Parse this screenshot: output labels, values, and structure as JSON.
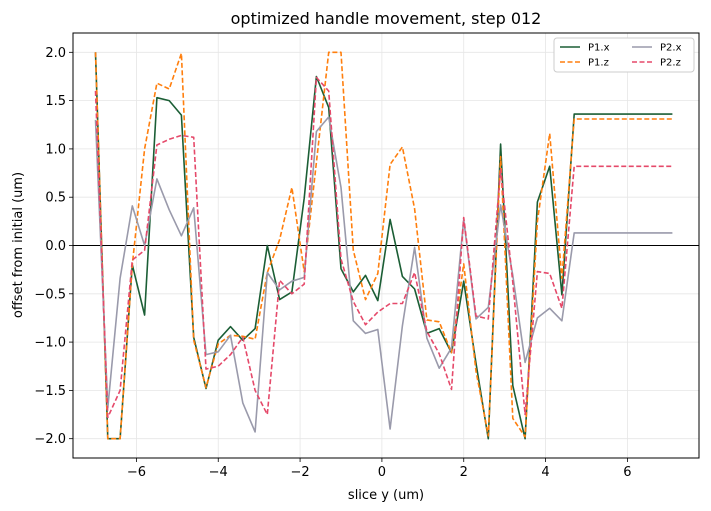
{
  "chart_data": {
    "type": "line",
    "title": "optimized handle movement, step 012",
    "xlabel": "slice y (um)",
    "ylabel": "offset from initial (um)",
    "xlim": [
      -7.55,
      7.75
    ],
    "ylim": [
      -2.2,
      2.2
    ],
    "xticks": [
      -6,
      -4,
      -2,
      0,
      2,
      4,
      6
    ],
    "yticks": [
      -2.0,
      -1.5,
      -1.0,
      -0.5,
      0.0,
      0.5,
      1.0,
      1.5,
      2.0
    ],
    "xtick_labels": [
      "−6",
      "−4",
      "−2",
      "0",
      "2",
      "4",
      "6"
    ],
    "ytick_labels": [
      "−2.0",
      "−1.5",
      "−1.0",
      "−0.5",
      "0.0",
      "0.5",
      "1.0",
      "1.5",
      "2.0"
    ],
    "grid": true,
    "zero_line": true,
    "legend_position": "top-right",
    "legend_columns": 2,
    "x": [
      -7.0,
      -6.7,
      -6.4,
      -6.1,
      -5.8,
      -5.5,
      -5.2,
      -4.9,
      -4.6,
      -4.3,
      -4.0,
      -3.7,
      -3.4,
      -3.1,
      -2.8,
      -2.5,
      -2.2,
      -1.9,
      -1.6,
      -1.3,
      -1.0,
      -0.7,
      -0.4,
      -0.1,
      0.2,
      0.5,
      0.8,
      1.1,
      1.4,
      1.7,
      2.0,
      2.3,
      2.6,
      2.9,
      3.2,
      3.5,
      3.8,
      4.1,
      4.4,
      4.7,
      5.0,
      5.3,
      5.6,
      5.9,
      6.2,
      6.5,
      6.8,
      7.1
    ],
    "series": [
      {
        "name": "P1.x",
        "color": "#1b5e35",
        "dash": "solid",
        "values": [
          2.0,
          -2.0,
          -2.0,
          -0.2,
          -0.72,
          1.53,
          1.5,
          1.35,
          -0.95,
          -1.48,
          -0.98,
          -0.84,
          -0.98,
          -0.86,
          0.0,
          -0.56,
          -0.48,
          0.49,
          1.75,
          1.43,
          -0.24,
          -0.48,
          -0.31,
          -0.57,
          0.27,
          -0.32,
          -0.45,
          -0.91,
          -0.86,
          -1.11,
          -0.37,
          -1.22,
          -2.0,
          1.05,
          -1.45,
          -2.0,
          0.45,
          0.82,
          -0.51,
          1.36,
          1.36,
          1.36,
          1.36,
          1.36,
          1.36,
          1.36,
          1.36,
          1.36
        ]
      },
      {
        "name": "P1.z",
        "color": "#ff7f0e",
        "dash": "dashed",
        "values": [
          2.0,
          -2.0,
          -2.0,
          -0.2,
          1.0,
          1.68,
          1.62,
          1.99,
          -0.98,
          -1.47,
          -1.02,
          -0.93,
          -0.94,
          -0.97,
          -0.28,
          0.06,
          0.6,
          -0.27,
          0.86,
          2.0,
          2.0,
          -0.05,
          -0.56,
          -0.29,
          0.84,
          1.02,
          0.38,
          -0.77,
          -0.79,
          -1.11,
          -0.19,
          -1.3,
          -1.97,
          0.92,
          -1.79,
          -1.98,
          0.25,
          1.16,
          -0.34,
          1.31,
          1.31,
          1.31,
          1.31,
          1.31,
          1.31,
          1.31,
          1.31,
          1.31
        ]
      },
      {
        "name": "P2.x",
        "color": "#9a9aab",
        "dash": "solid",
        "values": [
          1.3,
          -1.68,
          -0.34,
          0.41,
          0.0,
          0.69,
          0.37,
          0.1,
          0.39,
          -1.13,
          -1.1,
          -0.93,
          -1.63,
          -1.93,
          -0.28,
          -0.46,
          -0.37,
          -0.33,
          1.18,
          1.33,
          0.6,
          -0.78,
          -0.91,
          -0.87,
          -1.9,
          -0.83,
          -0.02,
          -0.96,
          -1.27,
          -1.06,
          0.27,
          -0.76,
          -0.64,
          0.42,
          -0.31,
          -1.21,
          -0.75,
          -0.65,
          -0.78,
          0.13,
          0.13,
          0.13,
          0.13,
          0.13,
          0.13,
          0.13,
          0.13,
          0.13
        ]
      },
      {
        "name": "P2.z",
        "color": "#e5496a",
        "dash": "dashed",
        "values": [
          1.6,
          -1.78,
          -1.5,
          -0.15,
          -0.05,
          1.04,
          1.1,
          1.14,
          1.12,
          -1.28,
          -1.25,
          -1.13,
          -0.95,
          -1.5,
          -1.75,
          -0.36,
          -0.5,
          -0.4,
          1.74,
          1.6,
          -0.14,
          -0.58,
          -0.82,
          -0.69,
          -0.6,
          -0.6,
          -0.28,
          -0.89,
          -1.12,
          -1.49,
          0.29,
          -0.73,
          -0.76,
          0.79,
          -0.38,
          -1.75,
          -0.27,
          -0.29,
          -0.65,
          0.82,
          0.82,
          0.82,
          0.82,
          0.82,
          0.82,
          0.82,
          0.82,
          0.82
        ]
      }
    ]
  }
}
